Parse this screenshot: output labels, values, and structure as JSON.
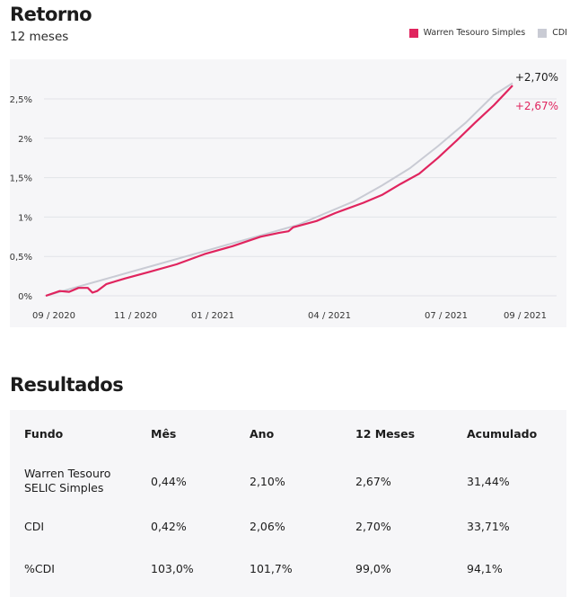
{
  "header": {
    "title": "Retorno",
    "subtitle": "12 meses"
  },
  "legend": [
    {
      "label": "Warren Tesouro Simples",
      "color": "#e0245e"
    },
    {
      "label": "CDI",
      "color": "#c9cbd4"
    }
  ],
  "chart_data": {
    "type": "line",
    "x_ticks": [
      "09 / 2020",
      "11 / 2020",
      "01 / 2021",
      "04 / 2021",
      "07 / 2021",
      "09 / 2021"
    ],
    "y_ticks": [
      "0%",
      "0,5%",
      "1%",
      "1,5%",
      "2%",
      "2,5%"
    ],
    "ylim": [
      0,
      2.75
    ],
    "grid": true,
    "series": [
      {
        "name": "CDI",
        "color": "#c9cbd4",
        "final_label": "+2,70%",
        "points": [
          [
            0,
            0
          ],
          [
            0.06,
            0.1
          ],
          [
            0.12,
            0.2
          ],
          [
            0.18,
            0.3
          ],
          [
            0.24,
            0.4
          ],
          [
            0.3,
            0.5
          ],
          [
            0.36,
            0.6
          ],
          [
            0.42,
            0.7
          ],
          [
            0.48,
            0.8
          ],
          [
            0.54,
            0.9
          ],
          [
            0.6,
            1.05
          ],
          [
            0.66,
            1.2
          ],
          [
            0.72,
            1.4
          ],
          [
            0.78,
            1.62
          ],
          [
            0.84,
            1.9
          ],
          [
            0.9,
            2.2
          ],
          [
            0.96,
            2.55
          ],
          [
            1.0,
            2.7
          ]
        ]
      },
      {
        "name": "Warren Tesouro Simples",
        "color": "#e0245e",
        "final_label": "+2,67%",
        "points": [
          [
            0,
            0
          ],
          [
            0.03,
            0.06
          ],
          [
            0.05,
            0.05
          ],
          [
            0.07,
            0.1
          ],
          [
            0.09,
            0.1
          ],
          [
            0.1,
            0.04
          ],
          [
            0.11,
            0.06
          ],
          [
            0.13,
            0.15
          ],
          [
            0.17,
            0.22
          ],
          [
            0.22,
            0.3
          ],
          [
            0.28,
            0.4
          ],
          [
            0.34,
            0.53
          ],
          [
            0.4,
            0.63
          ],
          [
            0.46,
            0.75
          ],
          [
            0.5,
            0.8
          ],
          [
            0.52,
            0.82
          ],
          [
            0.53,
            0.87
          ],
          [
            0.58,
            0.95
          ],
          [
            0.62,
            1.05
          ],
          [
            0.68,
            1.18
          ],
          [
            0.72,
            1.28
          ],
          [
            0.76,
            1.42
          ],
          [
            0.8,
            1.55
          ],
          [
            0.84,
            1.75
          ],
          [
            0.88,
            1.97
          ],
          [
            0.92,
            2.2
          ],
          [
            0.96,
            2.42
          ],
          [
            1.0,
            2.67
          ]
        ]
      }
    ]
  },
  "results": {
    "title": "Resultados",
    "columns": [
      "Fundo",
      "Mês",
      "Ano",
      "12 Meses",
      "Acumulado"
    ],
    "rows": [
      [
        "Warren Tesouro SELIC Simples",
        "0,44%",
        "2,10%",
        "2,67%",
        "31,44%"
      ],
      [
        "CDI",
        "0,42%",
        "2,06%",
        "2,70%",
        "33,71%"
      ],
      [
        "%CDI",
        "103,0%",
        "101,7%",
        "99,0%",
        "94,1%"
      ]
    ]
  }
}
